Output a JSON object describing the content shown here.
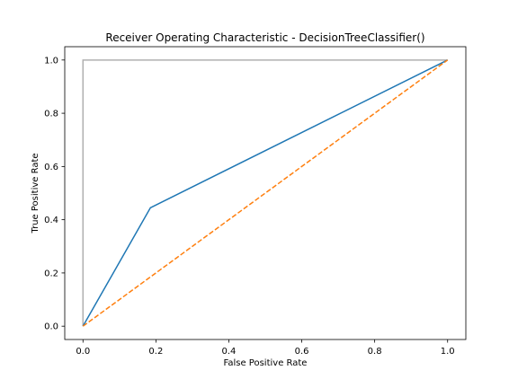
{
  "chart_data": {
    "type": "line",
    "title": "Receiver Operating Characteristic - DecisionTreeClassifier()",
    "xlabel": "False Positive Rate",
    "ylabel": "True Positive Rate",
    "xlim": [
      -0.05,
      1.05
    ],
    "ylim": [
      -0.05,
      1.05
    ],
    "xticks": [
      "0.0",
      "0.2",
      "0.4",
      "0.6",
      "0.8",
      "1.0"
    ],
    "yticks": [
      "0.0",
      "0.2",
      "0.4",
      "0.6",
      "0.8",
      "1.0"
    ],
    "grid": false,
    "series": [
      {
        "color": "#1f77b4",
        "style": "solid",
        "x": [
          0.0,
          0.185,
          1.0
        ],
        "y": [
          0.0,
          0.445,
          1.0
        ]
      },
      {
        "color": "#ff7f0e",
        "style": "dashed",
        "x": [
          0.0,
          1.0
        ],
        "y": [
          0.0,
          1.0
        ]
      },
      {
        "color": "#b0b0b0",
        "style": "solid",
        "x": [
          0.0,
          0.0,
          1.0
        ],
        "y": [
          0.0,
          1.0,
          1.0
        ]
      }
    ]
  }
}
